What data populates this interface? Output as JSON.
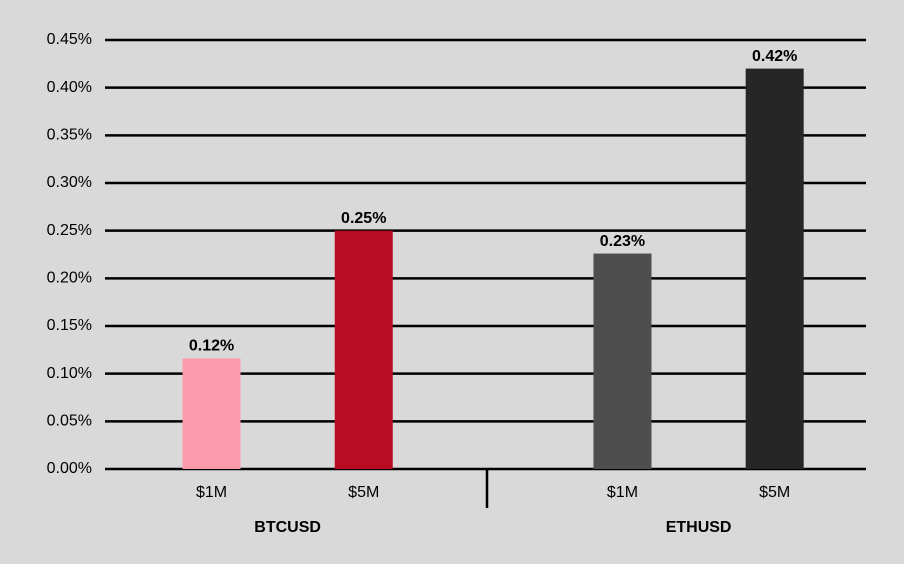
{
  "chart_data": {
    "type": "grouped-bar",
    "groups": [
      {
        "name": "BTCUSD",
        "categories": [
          "$1M",
          "$5M"
        ],
        "values": [
          0.116,
          0.25
        ],
        "value_labels": [
          "0.12%",
          "0.25%"
        ],
        "colors": [
          "#fb9aab",
          "#b80b24"
        ]
      },
      {
        "name": "ETHUSD",
        "categories": [
          "$1M",
          "$5M"
        ],
        "values": [
          0.226,
          0.42
        ],
        "value_labels": [
          "0.23%",
          "0.42%"
        ],
        "colors": [
          "#4e4e4e",
          "#262626"
        ]
      }
    ],
    "ylim": [
      0,
      0.45
    ],
    "yticks": [
      {
        "value": 0,
        "label": "0.00%"
      },
      {
        "value": 0.05,
        "label": "0.05%"
      },
      {
        "value": 0.1,
        "label": "0.10%"
      },
      {
        "value": 0.15,
        "label": "0.15%"
      },
      {
        "value": 0.2,
        "label": "0.20%"
      },
      {
        "value": 0.25,
        "label": "0.25%"
      },
      {
        "value": 0.3,
        "label": "0.30%"
      },
      {
        "value": 0.35,
        "label": "0.35%"
      },
      {
        "value": 0.4,
        "label": "0.40%"
      },
      {
        "value": 0.45,
        "label": "0.45%"
      }
    ],
    "grid": true
  }
}
